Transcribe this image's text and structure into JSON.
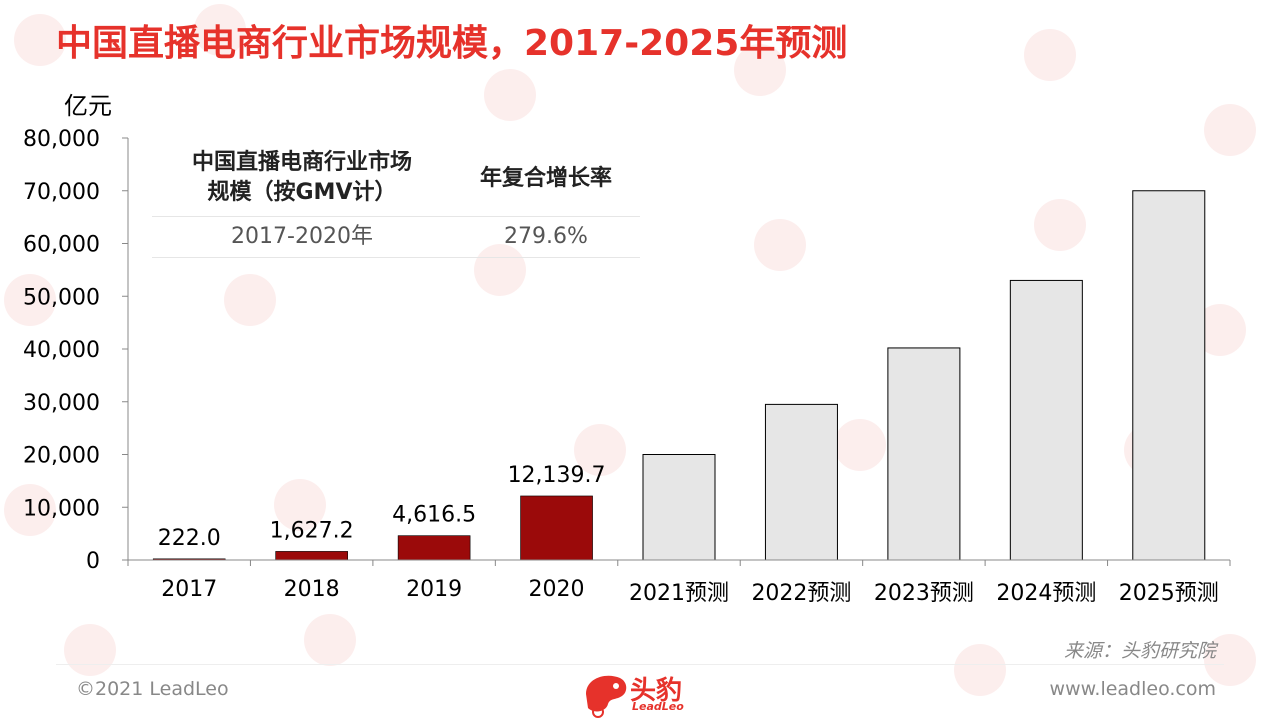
{
  "title": "中国直播电商行业市场规模，2017-2025年预测",
  "unit": "亿元",
  "table": {
    "col1_header": "中国直播电商行业市场规模（按GMV计）",
    "col2_header": "年复合增长率",
    "row_period": "2017-2020年",
    "row_rate": "279.6%"
  },
  "chart_data": {
    "type": "bar",
    "categories": [
      "2017",
      "2018",
      "2019",
      "2020",
      "2021预测",
      "2022预测",
      "2023预测",
      "2024预测",
      "2025预测"
    ],
    "values": [
      222.0,
      1627.2,
      4616.5,
      12139.7,
      20000,
      29500,
      40200,
      53000,
      70000
    ],
    "data_labels": [
      "222.0",
      "1,627.2",
      "4,616.5",
      "12,139.7",
      "",
      "",
      "",
      "",
      ""
    ],
    "ylim": [
      0,
      80000
    ],
    "yticks": [
      0,
      10000,
      20000,
      30000,
      40000,
      50000,
      60000,
      70000,
      80000
    ],
    "ytick_labels": [
      "0",
      "10,000",
      "20,000",
      "30,000",
      "40,000",
      "50,000",
      "60,000",
      "70,000",
      "80,000"
    ],
    "ylabel": "亿元",
    "colors": {
      "actual": "#9b0a0a",
      "forecast": "#e6e6e6",
      "forecast_border": "#000000"
    },
    "forecast_start_index": 4,
    "grid": false
  },
  "source": "来源：头豹研究院",
  "copyright": "©2021 LeadLeo",
  "website": "www.leadleo.com",
  "logo": {
    "text": "头豹",
    "sub": "LeadLeo",
    "color": "#e6322b"
  }
}
